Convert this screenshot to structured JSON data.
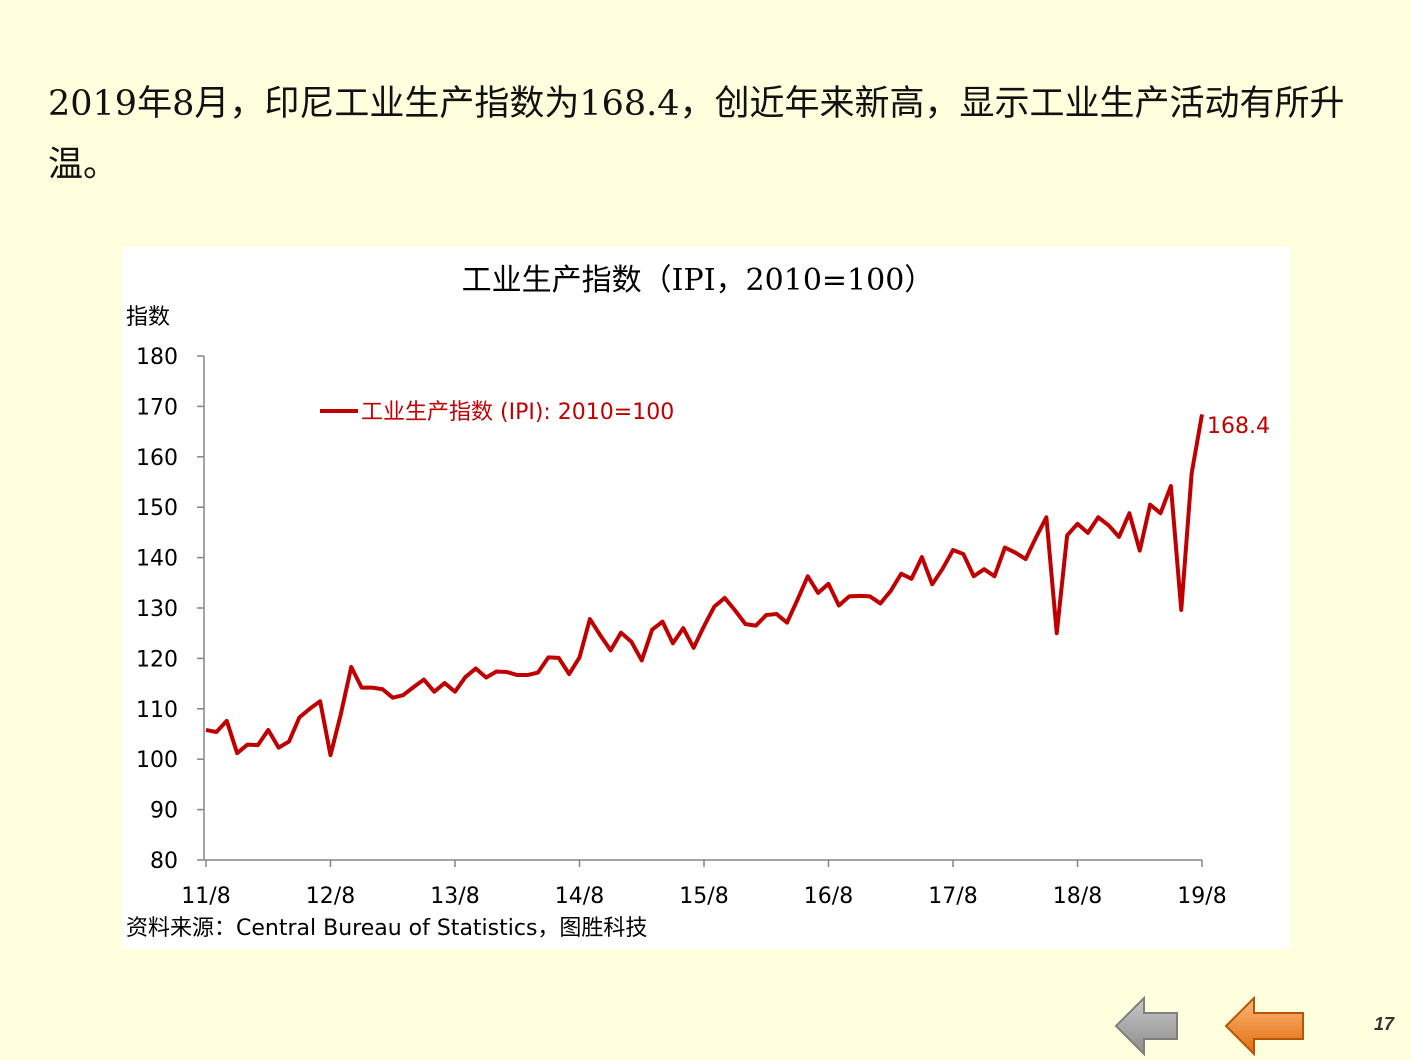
{
  "headline": "2019年8月，印尼工业生产指数为168.4，创近年来新高，显示工业生产活动有所升温。",
  "page_number": "17",
  "nav": {
    "prev_icon": "left-arrow-gray",
    "next_icon": "left-arrow-orange"
  },
  "colors": {
    "background": "#FFFFDD",
    "series": "#C00000",
    "prev_arrow": "#A6A6A6",
    "next_arrow": "#F79646"
  },
  "chart_data": {
    "type": "line",
    "title": "工业生产指数（IPI，2010=100）",
    "ylabel": "指数",
    "xlabel": "",
    "ylim": [
      80,
      180
    ],
    "yticks": [
      80,
      90,
      100,
      110,
      120,
      130,
      140,
      150,
      160,
      170,
      180
    ],
    "xtick_labels": [
      "11/8",
      "12/8",
      "13/8",
      "14/8",
      "15/8",
      "16/8",
      "17/8",
      "18/8",
      "19/8"
    ],
    "grid": false,
    "legend_position": "top-left",
    "end_label": "168.4",
    "source": "资料来源：Central Bureau of Statistics，图胜科技",
    "series": [
      {
        "name": "工业生产指数 (IPI): 2010=100",
        "color": "#C00000",
        "values": [
          105.8,
          105.4,
          107.6,
          101.2,
          102.9,
          102.8,
          105.8,
          102.3,
          103.5,
          108.3,
          110.0,
          111.5,
          100.8,
          109.0,
          118.3,
          114.2,
          114.2,
          113.9,
          112.2,
          112.7,
          114.3,
          115.8,
          113.4,
          115.1,
          113.4,
          116.3,
          118.0,
          116.2,
          117.4,
          117.3,
          116.7,
          116.7,
          117.2,
          120.2,
          120.1,
          116.9,
          120.2,
          127.8,
          124.6,
          121.6,
          125.1,
          123.3,
          119.6,
          125.7,
          127.3,
          123.0,
          126.0,
          122.1,
          126.4,
          130.3,
          132.0,
          129.5,
          126.8,
          126.5,
          128.6,
          128.8,
          127.1,
          131.6,
          136.3,
          133.0,
          134.8,
          130.5,
          132.3,
          132.4,
          132.3,
          130.9,
          133.4,
          136.8,
          135.8,
          140.1,
          134.7,
          137.8,
          141.5,
          140.7,
          136.3,
          137.7,
          136.3,
          142.0,
          141.0,
          139.7,
          144.0,
          148.0,
          125.0,
          144.4,
          146.7,
          144.9,
          148.0,
          146.4,
          144.1,
          148.8,
          141.4,
          150.5,
          148.8,
          154.2,
          129.6,
          156.7,
          168.4
        ]
      }
    ]
  }
}
